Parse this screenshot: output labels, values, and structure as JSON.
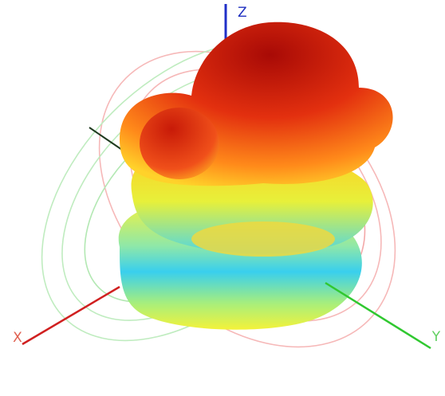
{
  "axes": {
    "z": "Z",
    "x": "X",
    "y": "Y"
  }
}
